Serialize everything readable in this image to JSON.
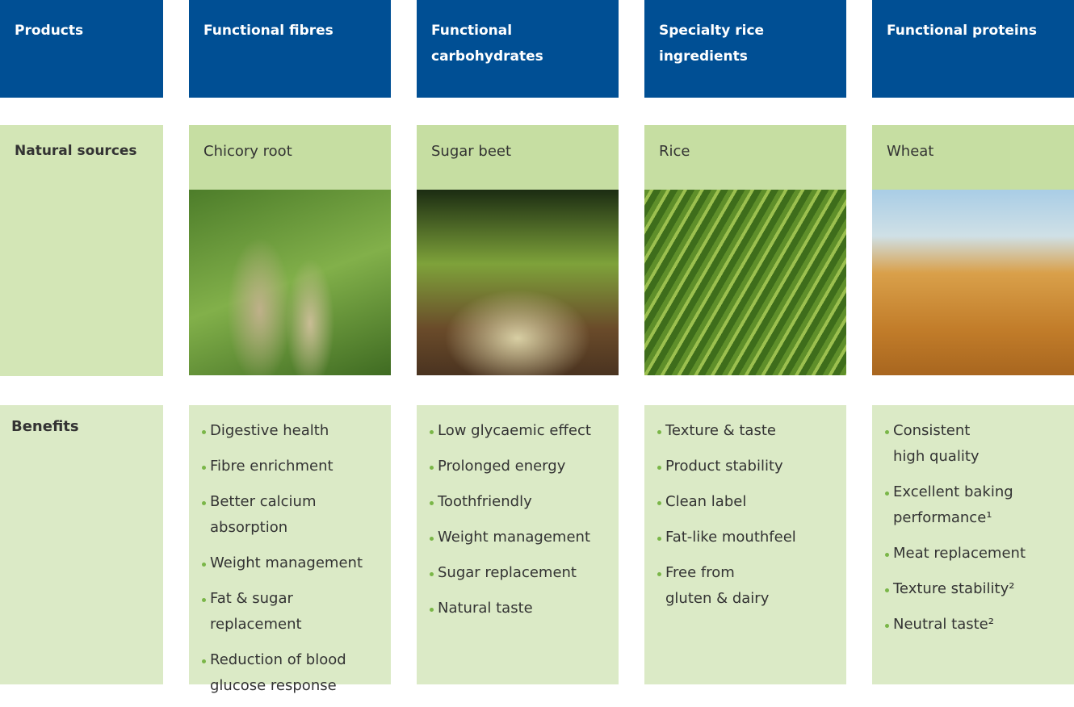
{
  "row_labels": {
    "products": "Products",
    "natural_sources": "Natural sources",
    "benefits": "Benefits"
  },
  "columns": [
    {
      "product": "Functional fibres",
      "source": "Chicory root",
      "benefits": [
        "Digestive health",
        "Fibre enrichment",
        "Better calcium\nabsorption",
        "Weight management",
        "Fat & sugar\nreplacement",
        "Reduction of blood\nglucose response"
      ]
    },
    {
      "product": "Functional\ncarbohydrates",
      "source": "Sugar beet",
      "benefits": [
        "Low glycaemic effect",
        "Prolonged energy",
        "Toothfriendly",
        "Weight management",
        "Sugar replacement",
        "Natural taste"
      ]
    },
    {
      "product": "Specialty rice\ningredients",
      "source": "Rice",
      "benefits": [
        "Texture & taste",
        "Product stability",
        "Clean label",
        "Fat-like mouthfeel",
        "Free from\ngluten & dairy"
      ]
    },
    {
      "product": "Functional proteins",
      "source": "Wheat",
      "benefits": [
        "Consistent\nhigh quality",
        "Excellent baking\nperformance¹",
        "Meat replacement",
        "Texture stability²",
        "Neutral taste²"
      ]
    }
  ]
}
